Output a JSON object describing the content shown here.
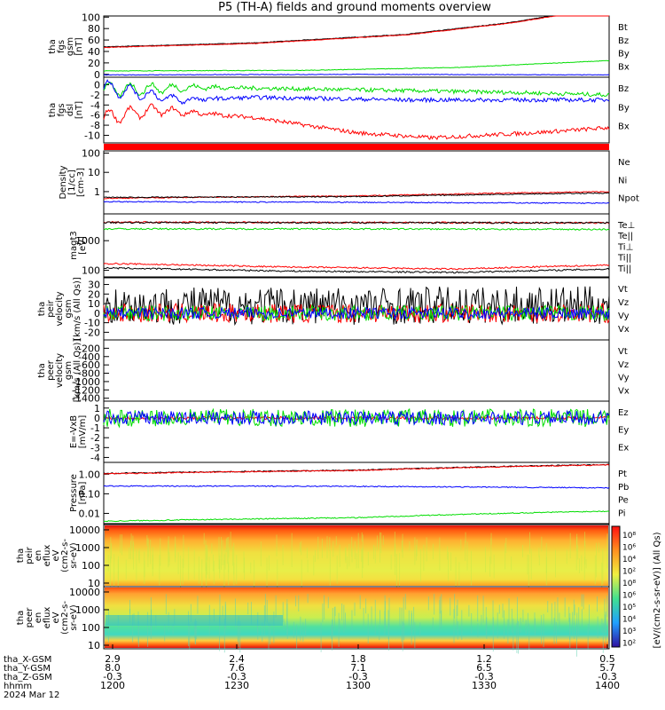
{
  "title": "P5 (TH-A) fields and ground moments overview",
  "colors": {
    "black": "#000000",
    "red": "#ff0000",
    "green": "#00dd00",
    "blue": "#0000ff"
  },
  "chart_data": [
    {
      "type": "line",
      "panel": "fgs_gsm",
      "ylabel": [
        "tha",
        "fgs",
        "gsm",
        "[nT]"
      ],
      "yticks": [
        "100",
        "80",
        "60",
        "40",
        "20",
        "0"
      ],
      "ylim": [
        -5,
        102
      ],
      "series": [
        {
          "name": "Bt",
          "color": "#000000",
          "trend": [
            [
              0,
              48
            ],
            [
              0.3,
              55
            ],
            [
              0.6,
              70
            ],
            [
              0.8,
              90
            ],
            [
              1,
              118
            ]
          ]
        },
        {
          "name": "Bz",
          "color": "#ff0000",
          "trend": [
            [
              0,
              47
            ],
            [
              0.3,
              54
            ],
            [
              0.6,
              69
            ],
            [
              0.8,
              89
            ],
            [
              1,
              117
            ]
          ]
        },
        {
          "name": "By",
          "color": "#00dd00",
          "trend": [
            [
              0,
              6
            ],
            [
              0.4,
              7
            ],
            [
              0.7,
              12
            ],
            [
              1,
              24
            ]
          ]
        },
        {
          "name": "Bx",
          "color": "#0000ff",
          "trend": [
            [
              0,
              -1
            ],
            [
              0.5,
              0
            ],
            [
              1,
              -1
            ]
          ]
        }
      ]
    },
    {
      "type": "line",
      "panel": "fgs_dsl",
      "ylabel": [
        "tha",
        "fgs",
        "dsl",
        "[nT]"
      ],
      "yticks": [
        "0",
        "-2",
        "-4",
        "-6",
        "-8",
        "-10"
      ],
      "ylim": [
        -11.5,
        1.5
      ],
      "series": [
        {
          "name": "Bz",
          "color": "#ff0000",
          "trend": [
            [
              0,
              -6.5
            ],
            [
              0.1,
              -5
            ],
            [
              0.3,
              -6.5
            ],
            [
              0.5,
              -9.5
            ],
            [
              0.65,
              -10.5
            ],
            [
              0.85,
              -9.5
            ],
            [
              1,
              -8.5
            ]
          ]
        },
        {
          "name": "By",
          "color": "#00dd00",
          "trend": [
            [
              0,
              -1
            ],
            [
              0.2,
              -0.5
            ],
            [
              0.5,
              -1
            ],
            [
              0.8,
              -1.5
            ],
            [
              1,
              -2
            ]
          ]
        },
        {
          "name": "Bx",
          "color": "#0000ff",
          "trend": [
            [
              0,
              -0.5
            ],
            [
              0.15,
              -3
            ],
            [
              0.3,
              -2.5
            ],
            [
              0.6,
              -3
            ],
            [
              1,
              -3
            ]
          ]
        }
      ]
    },
    {
      "type": "line",
      "panel": "density",
      "ylabel": [
        "Density",
        "[1/cc]",
        "[cm-3]"
      ],
      "yticks": [
        "100",
        "10",
        "1"
      ],
      "ylim": [
        0.07,
        130
      ],
      "log": true,
      "series": [
        {
          "name": "Ne",
          "color": "#ff0000",
          "trend": [
            [
              0,
              0.45
            ],
            [
              0.5,
              0.6
            ],
            [
              1,
              1.0
            ]
          ]
        },
        {
          "name": "Ni",
          "color": "#000000",
          "trend": [
            [
              0,
              0.5
            ],
            [
              0.5,
              0.55
            ],
            [
              1,
              0.85
            ]
          ]
        },
        {
          "name": "Npot",
          "color": "#0000ff",
          "trend": [
            [
              0,
              0.3
            ],
            [
              0.5,
              0.28
            ],
            [
              1,
              0.25
            ]
          ]
        }
      ]
    },
    {
      "type": "line",
      "panel": "temperature",
      "ylabel": [
        "magt3",
        "[eV]"
      ],
      "yticks": [
        "1000",
        "100"
      ],
      "ylim": [
        60,
        8000
      ],
      "log": true,
      "series": [
        {
          "name": "Te⊥",
          "color": "#ff0000",
          "trend": [
            [
              0,
              4200
            ],
            [
              0.5,
              4100
            ],
            [
              1,
              4000
            ]
          ]
        },
        {
          "name": "Te||",
          "color": "#000000",
          "trend": [
            [
              0,
              4100
            ],
            [
              1,
              4000
            ]
          ]
        },
        {
          "name": "Ti⊥",
          "color": "#ff0000",
          "trend": [
            [
              0,
              170
            ],
            [
              0.35,
              130
            ],
            [
              0.7,
              110
            ],
            [
              1,
              150
            ]
          ]
        },
        {
          "name": "Ti||",
          "color": "#00dd00",
          "trend": [
            [
              0,
              2500
            ],
            [
              0.5,
              2500
            ],
            [
              1,
              2400
            ]
          ]
        },
        {
          "name": "Ti||",
          "color": "#000000",
          "trend": [
            [
              0,
              120
            ],
            [
              0.35,
              95
            ],
            [
              0.7,
              85
            ],
            [
              1,
              110
            ]
          ]
        }
      ]
    },
    {
      "type": "line",
      "panel": "peir_velocity",
      "ylabel": [
        "tha",
        "peir",
        "velocity",
        "gsm",
        "[km/s (All Qs)]"
      ],
      "yticks": [
        "30",
        "20",
        "10",
        "0",
        "-10",
        "-20"
      ],
      "ylim": [
        -28,
        37
      ],
      "series": [
        {
          "name": "Vt",
          "color": "#000000",
          "mean": 8,
          "amp": 20
        },
        {
          "name": "Vz",
          "color": "#ff0000",
          "mean": 0,
          "amp": 10
        },
        {
          "name": "Vy",
          "color": "#00dd00",
          "mean": 0,
          "amp": 8
        },
        {
          "name": "Vx",
          "color": "#0000ff",
          "mean": 0,
          "amp": 6
        }
      ]
    },
    {
      "type": "line",
      "panel": "peer_velocity",
      "ylabel": [
        "tha",
        "peer",
        "velocity",
        "gsm",
        "[km/s (All Qs)]"
      ],
      "yticks": [
        "-200",
        "-400",
        "-600",
        "-800",
        "-1000",
        "-1200",
        "-1400"
      ],
      "ylim": [
        -1470,
        0
      ],
      "series": [
        {
          "name": "Vt",
          "color": "#000000"
        },
        {
          "name": "Vz",
          "color": "#ff0000"
        },
        {
          "name": "Vy",
          "color": "#00dd00"
        },
        {
          "name": "Vx",
          "color": "#0000ff"
        }
      ]
    },
    {
      "type": "line",
      "panel": "efield",
      "ylabel": [
        "E=-VxB",
        "[mV/m]"
      ],
      "yticks": [
        "1",
        "0",
        "-1",
        "-2",
        "-3",
        "-4"
      ],
      "ylim": [
        -4.5,
        1.7
      ],
      "series": [
        {
          "name": "Ez",
          "color": "#ff0000",
          "mean": 0,
          "amp": 0.15
        },
        {
          "name": "Ey",
          "color": "#00dd00",
          "mean": 0,
          "amp": 0.9
        },
        {
          "name": "Ex",
          "color": "#0000ff",
          "mean": 0,
          "amp": 0.7
        }
      ]
    },
    {
      "type": "line",
      "panel": "pressure",
      "ylabel": [
        "Pressure",
        "[nPa]"
      ],
      "yticks": [
        "1.00",
        "0.10",
        "0.01"
      ],
      "ylim": [
        0.003,
        4
      ],
      "log": true,
      "series": [
        {
          "name": "Pt",
          "color": "#000000",
          "trend": [
            [
              0,
              1.1
            ],
            [
              0.5,
              1.6
            ],
            [
              1,
              3.1
            ]
          ]
        },
        {
          "name": "Pb",
          "color": "#ff0000",
          "trend": [
            [
              0,
              1.05
            ],
            [
              0.5,
              1.55
            ],
            [
              1,
              3.0
            ]
          ]
        },
        {
          "name": "Pe",
          "color": "#0000ff",
          "trend": [
            [
              0,
              0.25
            ],
            [
              0.5,
              0.24
            ],
            [
              1,
              0.2
            ]
          ]
        },
        {
          "name": "Pi",
          "color": "#00dd00",
          "trend": [
            [
              0,
              0.004
            ],
            [
              0.5,
              0.006
            ],
            [
              1,
              0.013
            ]
          ]
        }
      ]
    },
    {
      "type": "heatmap",
      "panel": "peir_spec",
      "ylabel": [
        "tha",
        "peir",
        "en",
        "eflux",
        "eV",
        "(cm2-s-",
        "sr-eV)"
      ],
      "yticks": [
        "10000",
        "1000",
        "100",
        "10"
      ]
    },
    {
      "type": "heatmap",
      "panel": "peer_spec",
      "ylabel": [
        "tha",
        "peer",
        "en",
        "eflux",
        "eV",
        "(cm2-s-",
        "sr-eV)"
      ],
      "yticks": [
        "10000",
        "1000",
        "100",
        "10"
      ]
    }
  ],
  "colorbar": {
    "label": "[eV/(cm2-s-sr-eV)] (All Qs)",
    "ticks": [
      "10⁸",
      "10⁶",
      "10⁴",
      "10²",
      "10⁸",
      "10⁶",
      "10⁵",
      "10⁴",
      "10³",
      "10²"
    ]
  },
  "xaxis": {
    "rows": [
      {
        "label": "tha_X-GSM",
        "values": [
          "2.9",
          "2.4",
          "1.8",
          "1.2",
          "0.5"
        ]
      },
      {
        "label": "tha_Y-GSM",
        "values": [
          "8.0",
          "7.6",
          "7.1",
          "6.5",
          "5.7"
        ]
      },
      {
        "label": "tha_Z-GSM",
        "values": [
          "-0.3",
          "-0.3",
          "-0.3",
          "-0.3",
          "-0.3"
        ]
      },
      {
        "label": "hhmm",
        "values": [
          "1200",
          "1230",
          "1300",
          "1330",
          "1400"
        ]
      }
    ],
    "date": "2024 Mar 12"
  }
}
